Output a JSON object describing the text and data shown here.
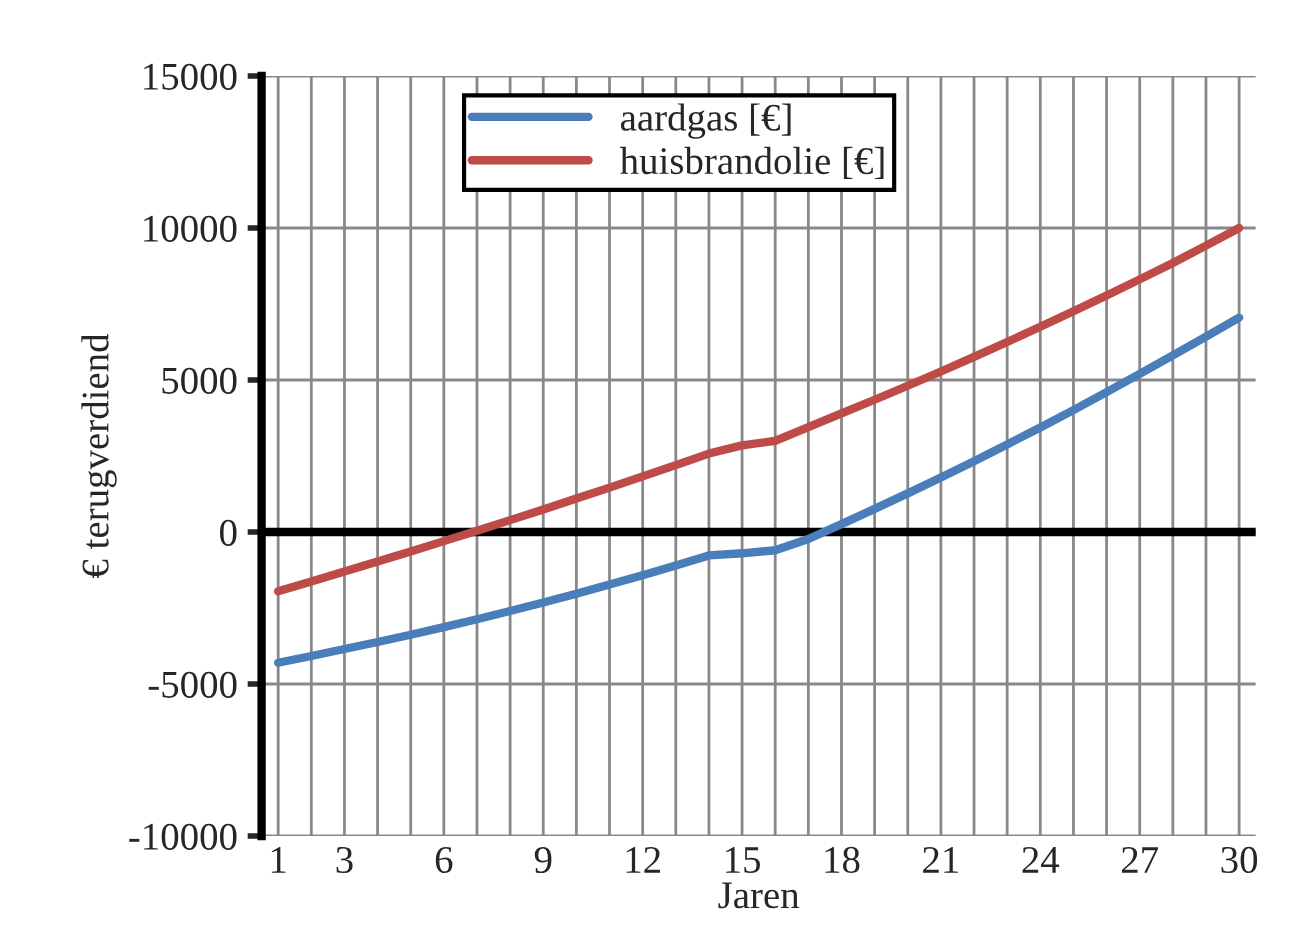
{
  "chart_data": {
    "type": "line",
    "xlabel": "Jaren",
    "ylabel": "€ terugverdiend",
    "categories": [
      "1",
      null,
      "3",
      null,
      null,
      "6",
      null,
      null,
      "9",
      null,
      null,
      "12",
      null,
      null,
      "15",
      null,
      null,
      "18",
      null,
      null,
      "21",
      null,
      null,
      "24",
      null,
      null,
      "27",
      null,
      null,
      "30"
    ],
    "series": [
      {
        "name": "aardgas [€]",
        "color": "#4a7ebb",
        "values": [
          -4300,
          -4080,
          -3850,
          -3620,
          -3380,
          -3130,
          -2870,
          -2600,
          -2320,
          -2030,
          -1730,
          -1420,
          -1100,
          -770,
          -700,
          -600,
          -230,
          260,
          760,
          1270,
          1790,
          2330,
          2880,
          3440,
          4010,
          4600,
          5200,
          5810,
          6430,
          7050
        ]
      },
      {
        "name": "huisbrandolie [€]",
        "color": "#be4b48",
        "values": [
          -1950,
          -1630,
          -1300,
          -970,
          -640,
          -300,
          40,
          390,
          740,
          1100,
          1460,
          1830,
          2200,
          2580,
          2850,
          3000,
          3450,
          3900,
          4350,
          4810,
          5280,
          5760,
          6250,
          6750,
          7260,
          7780,
          8310,
          8850,
          9420,
          10000
        ]
      }
    ],
    "ylim": [
      -10000,
      15000
    ],
    "yticks": [
      -10000,
      -5000,
      0,
      5000,
      10000,
      15000
    ],
    "ref_lines": [
      {
        "axis": "y",
        "value": 0,
        "color": "#000000"
      }
    ],
    "grid": true,
    "legend": "top",
    "marker": "none",
    "line_style": "solid"
  }
}
